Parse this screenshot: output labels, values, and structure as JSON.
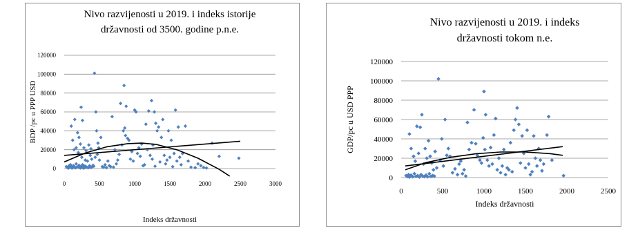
{
  "chart_data": [
    {
      "type": "scatter",
      "title_lines": [
        "Nivo razvijenosti u 2019. i indeks istorije",
        "državnosti  od 3500. godine p.n.e."
      ],
      "xlabel": "Indeks  državnosti",
      "ylabel": "BDP /pc u PPP USD",
      "xlim": [
        0,
        3000
      ],
      "ylim": [
        0,
        120000
      ],
      "xticks": [
        "0",
        "500",
        "1000",
        "1500",
        "2000",
        "2500",
        "3000"
      ],
      "yticks": [
        "0",
        "20000",
        "40000",
        "60000",
        "80000",
        "100000",
        "120000"
      ],
      "grid": "horizontal",
      "legend": "none",
      "marker_color": "#4f81bd",
      "trend_color": "#000000",
      "points": [
        [
          30,
          2000
        ],
        [
          50,
          1000
        ],
        [
          60,
          500
        ],
        [
          70,
          3000
        ],
        [
          80,
          1500
        ],
        [
          90,
          4000
        ],
        [
          100,
          2000
        ],
        [
          110,
          500
        ],
        [
          120,
          1000
        ],
        [
          130,
          3000
        ],
        [
          140,
          2500
        ],
        [
          150,
          1200
        ],
        [
          160,
          800
        ],
        [
          170,
          5000
        ],
        [
          180,
          1500
        ],
        [
          200,
          2000
        ],
        [
          210,
          3500
        ],
        [
          220,
          1000
        ],
        [
          230,
          600
        ],
        [
          240,
          2000
        ],
        [
          250,
          1500
        ],
        [
          260,
          4000
        ],
        [
          270,
          500
        ],
        [
          280,
          3000
        ],
        [
          290,
          1000
        ],
        [
          300,
          2500
        ],
        [
          320,
          1500
        ],
        [
          340,
          800
        ],
        [
          360,
          3000
        ],
        [
          380,
          1200
        ],
        [
          400,
          2000
        ],
        [
          100,
          45000
        ],
        [
          120,
          30000
        ],
        [
          140,
          20000
        ],
        [
          150,
          52000
        ],
        [
          170,
          22000
        ],
        [
          190,
          38000
        ],
        [
          200,
          17000
        ],
        [
          210,
          33000
        ],
        [
          230,
          26000
        ],
        [
          240,
          65000
        ],
        [
          250,
          12000
        ],
        [
          260,
          51000
        ],
        [
          280,
          22000
        ],
        [
          300,
          9000
        ],
        [
          310,
          19000
        ],
        [
          330,
          8000
        ],
        [
          350,
          25000
        ],
        [
          370,
          14000
        ],
        [
          380,
          21000
        ],
        [
          390,
          10000
        ],
        [
          410,
          3500
        ],
        [
          420,
          2500
        ],
        [
          430,
          101000
        ],
        [
          440,
          12000
        ],
        [
          450,
          60000
        ],
        [
          460,
          40000
        ],
        [
          470,
          15000
        ],
        [
          480,
          27000
        ],
        [
          490,
          22000
        ],
        [
          500,
          9000
        ],
        [
          520,
          33000
        ],
        [
          540,
          2000
        ],
        [
          560,
          1500
        ],
        [
          580,
          4000
        ],
        [
          600,
          1000
        ],
        [
          620,
          8000
        ],
        [
          640,
          3000
        ],
        [
          660,
          2000
        ],
        [
          680,
          55000
        ],
        [
          700,
          1500
        ],
        [
          720,
          20000
        ],
        [
          740,
          5000
        ],
        [
          760,
          9000
        ],
        [
          780,
          15000
        ],
        [
          800,
          69000
        ],
        [
          820,
          25000
        ],
        [
          840,
          40000
        ],
        [
          850,
          88000
        ],
        [
          860,
          43000
        ],
        [
          870,
          35000
        ],
        [
          880,
          66000
        ],
        [
          900,
          32000
        ],
        [
          920,
          30000
        ],
        [
          940,
          10000
        ],
        [
          960,
          18000
        ],
        [
          980,
          8000
        ],
        [
          1000,
          62000
        ],
        [
          1020,
          60000
        ],
        [
          1040,
          16000
        ],
        [
          1060,
          22000
        ],
        [
          1080,
          13000
        ],
        [
          1100,
          26000
        ],
        [
          1120,
          3000
        ],
        [
          1140,
          4000
        ],
        [
          1160,
          47000
        ],
        [
          1180,
          20000
        ],
        [
          1200,
          61000
        ],
        [
          1220,
          14000
        ],
        [
          1240,
          72000
        ],
        [
          1250,
          10000
        ],
        [
          1260,
          25000
        ],
        [
          1280,
          60000
        ],
        [
          1290,
          2500
        ],
        [
          1300,
          48000
        ],
        [
          1320,
          40000
        ],
        [
          1340,
          44000
        ],
        [
          1360,
          7000
        ],
        [
          1380,
          33000
        ],
        [
          1400,
          52000
        ],
        [
          1420,
          14000
        ],
        [
          1440,
          5000
        ],
        [
          1460,
          9000
        ],
        [
          1480,
          40000
        ],
        [
          1500,
          12000
        ],
        [
          1520,
          30000
        ],
        [
          1540,
          2000
        ],
        [
          1560,
          16000
        ],
        [
          1580,
          62000
        ],
        [
          1600,
          8000
        ],
        [
          1620,
          44000
        ],
        [
          1640,
          12000
        ],
        [
          1660,
          4000
        ],
        [
          1680,
          16000
        ],
        [
          1720,
          45000
        ],
        [
          1760,
          8000
        ],
        [
          1800,
          1500
        ],
        [
          1860,
          1000
        ],
        [
          1900,
          5000
        ],
        [
          1940,
          3000
        ],
        [
          1980,
          1200
        ],
        [
          2020,
          600
        ],
        [
          2100,
          27000
        ],
        [
          2200,
          13000
        ],
        [
          2480,
          11000
        ]
      ],
      "trend_linear": [
        [
          0,
          14000
        ],
        [
          2500,
          29000
        ]
      ],
      "trend_poly": [
        [
          0,
          7000
        ],
        [
          300,
          16500
        ],
        [
          600,
          23000
        ],
        [
          900,
          26400
        ],
        [
          1100,
          27000
        ],
        [
          1300,
          25700
        ],
        [
          1600,
          20000
        ],
        [
          1900,
          11000
        ],
        [
          2200,
          -800
        ],
        [
          2350,
          -8000
        ]
      ]
    },
    {
      "type": "scatter",
      "title_lines": [
        "Nivo razvijenosti u  2019.  i indeks",
        "državnosti tokom n.e."
      ],
      "xlabel": "Indeks državnosti",
      "ylabel": "GDP/pc u USD PPP",
      "xlim": [
        0,
        2500
      ],
      "ylim": [
        0,
        120000
      ],
      "xticks": [
        "0",
        "500",
        "1000",
        "1500",
        "2000",
        "2500"
      ],
      "yticks": [
        "0",
        "20000",
        "40000",
        "60000",
        "80000",
        "100000",
        "120000"
      ],
      "grid": "horizontal",
      "legend": "none",
      "marker_color": "#4f81bd",
      "trend_color": "#000000",
      "points": [
        [
          60,
          2000
        ],
        [
          80,
          1000
        ],
        [
          90,
          3000
        ],
        [
          100,
          500
        ],
        [
          110,
          1500
        ],
        [
          120,
          2500
        ],
        [
          140,
          800
        ],
        [
          160,
          4000
        ],
        [
          180,
          1200
        ],
        [
          200,
          2000
        ],
        [
          220,
          600
        ],
        [
          240,
          3000
        ],
        [
          260,
          1500
        ],
        [
          280,
          1000
        ],
        [
          300,
          2500
        ],
        [
          320,
          800
        ],
        [
          340,
          4000
        ],
        [
          360,
          1200
        ],
        [
          380,
          2000
        ],
        [
          400,
          1500
        ],
        [
          100,
          45000
        ],
        [
          120,
          30000
        ],
        [
          150,
          22000
        ],
        [
          170,
          17000
        ],
        [
          190,
          53000
        ],
        [
          210,
          25000
        ],
        [
          230,
          52000
        ],
        [
          250,
          65000
        ],
        [
          270,
          14000
        ],
        [
          290,
          30000
        ],
        [
          310,
          20000
        ],
        [
          330,
          38000
        ],
        [
          350,
          22000
        ],
        [
          370,
          15000
        ],
        [
          390,
          8000
        ],
        [
          410,
          27000
        ],
        [
          430,
          10000
        ],
        [
          450,
          102000
        ],
        [
          470,
          18000
        ],
        [
          490,
          40000
        ],
        [
          510,
          12000
        ],
        [
          530,
          60000
        ],
        [
          550,
          23000
        ],
        [
          570,
          30000
        ],
        [
          590,
          22000
        ],
        [
          620,
          5000
        ],
        [
          650,
          9000
        ],
        [
          680,
          3000
        ],
        [
          700,
          14000
        ],
        [
          720,
          17000
        ],
        [
          740,
          4000
        ],
        [
          760,
          8000
        ],
        [
          780,
          1500
        ],
        [
          800,
          57000
        ],
        [
          820,
          29000
        ],
        [
          850,
          36000
        ],
        [
          880,
          70000
        ],
        [
          900,
          35000
        ],
        [
          920,
          23000
        ],
        [
          950,
          18000
        ],
        [
          970,
          15000
        ],
        [
          990,
          41000
        ],
        [
          1000,
          89000
        ],
        [
          1010,
          29000
        ],
        [
          1020,
          65000
        ],
        [
          1040,
          18000
        ],
        [
          1060,
          12000
        ],
        [
          1080,
          31000
        ],
        [
          1100,
          14000
        ],
        [
          1120,
          44000
        ],
        [
          1140,
          61000
        ],
        [
          1160,
          8000
        ],
        [
          1180,
          20000
        ],
        [
          1200,
          5000
        ],
        [
          1220,
          12000
        ],
        [
          1240,
          29000
        ],
        [
          1260,
          3000
        ],
        [
          1280,
          10000
        ],
        [
          1300,
          8000
        ],
        [
          1320,
          36000
        ],
        [
          1340,
          6000
        ],
        [
          1360,
          49000
        ],
        [
          1380,
          60000
        ],
        [
          1400,
          72000
        ],
        [
          1420,
          55000
        ],
        [
          1440,
          15000
        ],
        [
          1460,
          43000
        ],
        [
          1480,
          25000
        ],
        [
          1500,
          10000
        ],
        [
          1520,
          49000
        ],
        [
          1540,
          14000
        ],
        [
          1560,
          3000
        ],
        [
          1580,
          6000
        ],
        [
          1600,
          43000
        ],
        [
          1620,
          20000
        ],
        [
          1640,
          12000
        ],
        [
          1660,
          30000
        ],
        [
          1680,
          18000
        ],
        [
          1700,
          7000
        ],
        [
          1720,
          14000
        ],
        [
          1760,
          44000
        ],
        [
          1780,
          63000
        ],
        [
          1820,
          18000
        ],
        [
          1960,
          2000
        ]
      ],
      "trend_linear": [
        [
          50,
          12000
        ],
        [
          1950,
          32000
        ]
      ],
      "trend_poly": [
        [
          50,
          8000
        ],
        [
          300,
          15500
        ],
        [
          600,
          21000
        ],
        [
          900,
          24600
        ],
        [
          1200,
          26400
        ],
        [
          1500,
          26400
        ],
        [
          1800,
          24700
        ],
        [
          1950,
          23000
        ]
      ]
    }
  ]
}
